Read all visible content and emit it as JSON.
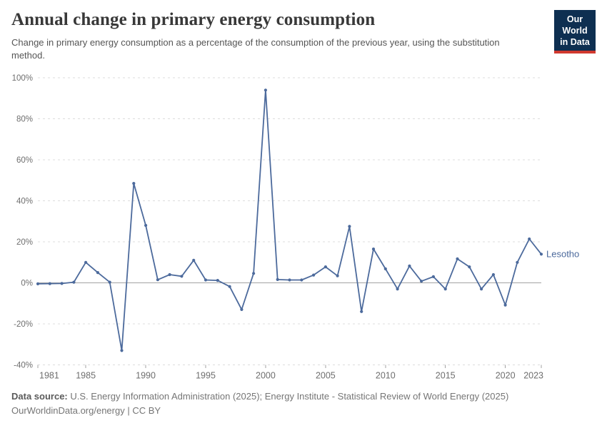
{
  "header": {
    "title": "Annual change in primary energy consumption",
    "subtitle": "Change in primary energy consumption as a percentage of the consumption of the previous year, using the substitution method.",
    "logo": {
      "line1": "Our World",
      "line2": "in Data"
    }
  },
  "chart_data": {
    "type": "line",
    "title": "Annual change in primary energy consumption",
    "xlabel": "",
    "ylabel": "",
    "ylim": [
      -40,
      100
    ],
    "ytick_step": 20,
    "ytick_suffix": "%",
    "xticks": [
      1981,
      1985,
      1990,
      1995,
      2000,
      2005,
      2010,
      2015,
      2020,
      2023
    ],
    "grid": "horizontal-dashed",
    "zero_line": true,
    "legend_position": "end-of-line-label",
    "series": [
      {
        "name": "Lesotho",
        "color": "#4C6A9C",
        "x": [
          1981,
          1982,
          1983,
          1984,
          1985,
          1986,
          1987,
          1988,
          1989,
          1990,
          1991,
          1992,
          1993,
          1994,
          1995,
          1996,
          1997,
          1998,
          1999,
          2000,
          2001,
          2002,
          2003,
          2004,
          2005,
          2006,
          2007,
          2008,
          2009,
          2010,
          2011,
          2012,
          2013,
          2014,
          2015,
          2016,
          2017,
          2018,
          2019,
          2020,
          2021,
          2022,
          2023
        ],
        "values": [
          -0.5,
          -0.4,
          -0.3,
          0.3,
          10,
          5,
          0.3,
          -33,
          48.5,
          28,
          1.5,
          4,
          3.2,
          11,
          1.4,
          1.2,
          -1.8,
          -13,
          4.6,
          94,
          1.6,
          1.4,
          1.4,
          3.8,
          7.8,
          3.4,
          27.5,
          -14,
          16.5,
          6.8,
          -3,
          8.2,
          0.8,
          3,
          -3,
          11.7,
          7.8,
          -3,
          4,
          -10.8,
          10,
          21.4,
          14
        ]
      }
    ],
    "colors": {
      "line": "#4C6A9C",
      "grid": "#dcdcdc",
      "zero_line": "#a3a3a3",
      "tick": "#a3a3a3",
      "axis_label": "#6e6e6e"
    }
  },
  "footer": {
    "source_label": "Data source:",
    "source_text": " U.S. Energy Information Administration (2025); Energy Institute - Statistical Review of World Energy (2025)",
    "license_line": "OurWorldinData.org/energy | CC BY"
  }
}
